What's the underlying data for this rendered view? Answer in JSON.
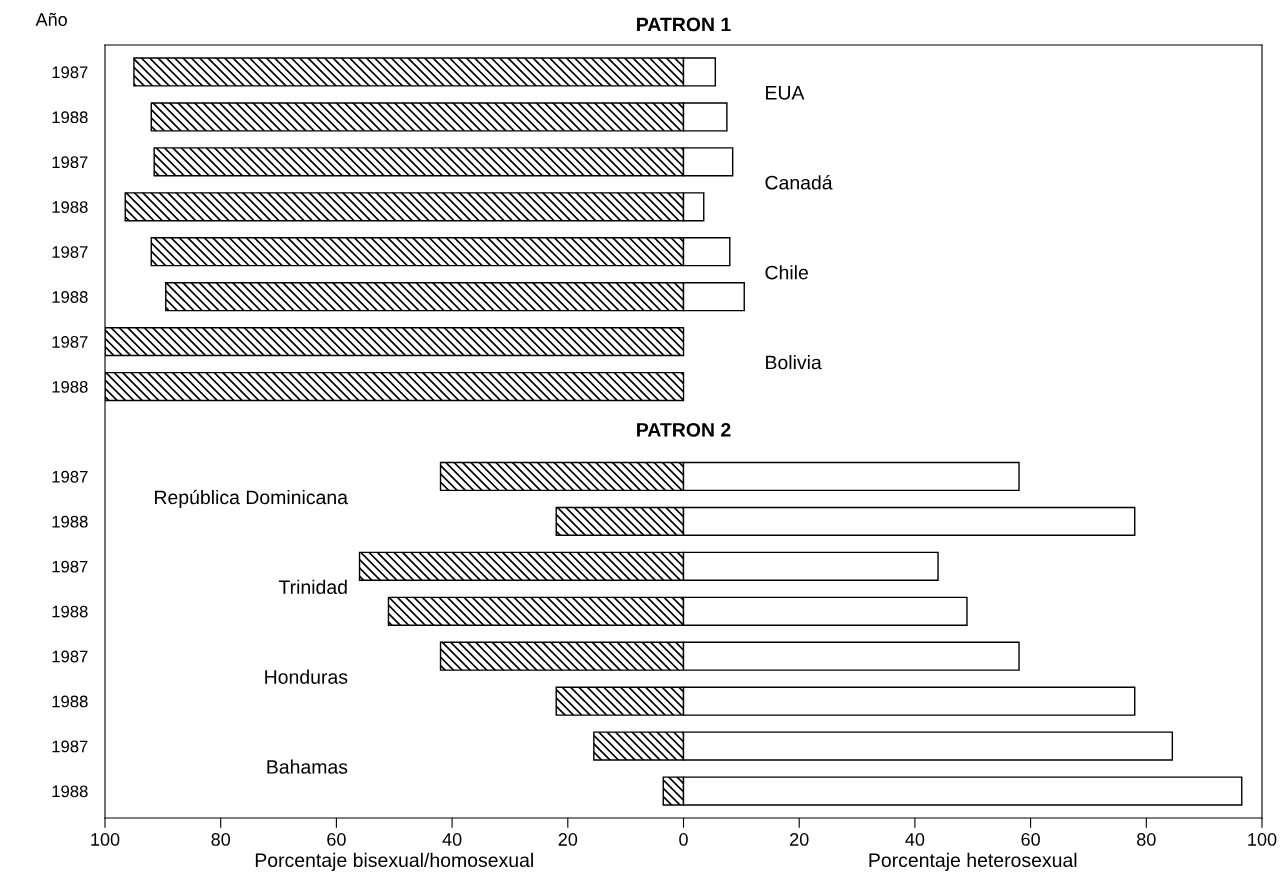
{
  "chart_data": {
    "type": "bar",
    "orientation": "horizontal",
    "stacked": true,
    "title": "PATRON 1",
    "ylabel": "Año",
    "categories": [
      "1987",
      "1988",
      "1987",
      "1988",
      "1987",
      "1988",
      "1987",
      "1988",
      null,
      "1987",
      "1988",
      "1987",
      "1988",
      "1987",
      "1988",
      "1987",
      "1988"
    ],
    "series": [
      {
        "color": "#000000",
        "values": [
          -95,
          -92,
          -91.5,
          -96.5,
          -92,
          -89.5,
          -100,
          -100,
          null,
          -42,
          -22,
          -56,
          -51,
          -42,
          -22,
          -15.5,
          -3.5
        ]
      },
      {
        "color": "#ffffff",
        "values": [
          5.5,
          7.5,
          8.5,
          3.5,
          8,
          10.5,
          0,
          0,
          null,
          58,
          78,
          44,
          49,
          58,
          78,
          84.5,
          96.5
        ]
      }
    ],
    "xlim": [
      -100,
      100
    ],
    "xticks": [
      {
        "value": -100,
        "label": "100"
      },
      {
        "value": -80,
        "label": "80"
      },
      {
        "value": -60,
        "label": "60"
      },
      {
        "value": -40,
        "label": "40"
      },
      {
        "value": -20,
        "label": "20"
      },
      0,
      20,
      40,
      60,
      80,
      100
    ],
    "annotations": [
      "EUA",
      "Canadá",
      "Chile",
      "Bolivia",
      "República Dominicana",
      "Trinidad",
      "Honduras",
      "Bahamas",
      "PATRON 2",
      "Porcentaje bisexual/homosexual",
      "Porcentaje heterosexual"
    ],
    "grid": false,
    "legend": false
  }
}
